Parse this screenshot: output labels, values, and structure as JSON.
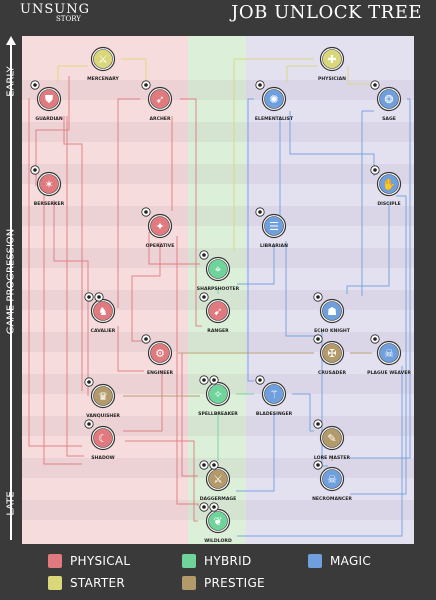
{
  "header": {
    "logo_text": "UNSUNG",
    "logo_sub": "STORY",
    "title": "JOB UNLOCK TREE"
  },
  "axis": {
    "early_label": "EARLY",
    "progression_label": "GAME PROGRESSION",
    "late_label": "LATE"
  },
  "colors": {
    "physical": "#e07a7e",
    "hybrid": "#6fd49a",
    "magic": "#6f9fdc",
    "starter": "#d9d77a",
    "prestige": "#b39a6a"
  },
  "legend": [
    {
      "label": "PHYSICAL",
      "color": "#e07a7e"
    },
    {
      "label": "HYBRID",
      "color": "#6fd49a"
    },
    {
      "label": "MAGIC",
      "color": "#6f9fdc"
    },
    {
      "label": "STARTER",
      "color": "#d9d77a"
    },
    {
      "label": "PRESTIGE",
      "color": "#b39a6a"
    }
  ],
  "jobs": [
    {
      "id": "mercenary",
      "label": "MERCENARY",
      "category": "starter",
      "icon": "crossed-swords-icon",
      "glyph": "⚔",
      "reqs": []
    },
    {
      "id": "physician",
      "label": "PHYSICIAN",
      "category": "starter",
      "icon": "staff-icon",
      "glyph": "✚",
      "reqs": []
    },
    {
      "id": "guardian",
      "label": "GUARDIAN",
      "category": "physical",
      "icon": "shield-icon",
      "glyph": "⛊",
      "reqs": [
        "axe-icon"
      ]
    },
    {
      "id": "archer",
      "label": "ARCHER",
      "category": "physical",
      "icon": "bow-icon",
      "glyph": "➶",
      "reqs": [
        "bow-small-icon"
      ]
    },
    {
      "id": "elementalist",
      "label": "ELEMENTALIST",
      "category": "magic",
      "icon": "spiral-icon",
      "glyph": "✺",
      "reqs": [
        "swirl-icon"
      ]
    },
    {
      "id": "sage",
      "label": "SAGE",
      "category": "magic",
      "icon": "winged-orb-icon",
      "glyph": "❂",
      "reqs": [
        "wings-icon"
      ]
    },
    {
      "id": "berserker",
      "label": "BERSERKER",
      "category": "physical",
      "icon": "claw-icon",
      "glyph": "✶",
      "reqs": [
        "claw-small-icon"
      ]
    },
    {
      "id": "disciple",
      "label": "DISCIPLE",
      "category": "magic",
      "icon": "hand-icon",
      "glyph": "✋",
      "reqs": [
        "hand-small-icon"
      ]
    },
    {
      "id": "operative",
      "label": "OPERATIVE",
      "category": "physical",
      "icon": "dagger-icon",
      "glyph": "✦",
      "reqs": [
        "dagger-small-icon"
      ]
    },
    {
      "id": "librarian",
      "label": "LIBRARIAN",
      "category": "magic",
      "icon": "book-icon",
      "glyph": "☰",
      "reqs": [
        "scroll-icon"
      ]
    },
    {
      "id": "sharpshooter",
      "label": "SHARPSHOOTER",
      "category": "hybrid",
      "icon": "crosshair-icon",
      "glyph": "⌖",
      "reqs": [
        "target-icon"
      ]
    },
    {
      "id": "cavalier",
      "label": "CAVALIER",
      "category": "physical",
      "icon": "horse-icon",
      "glyph": "♞",
      "reqs": [
        "horse-small-icon",
        "lance-icon"
      ]
    },
    {
      "id": "ranger",
      "label": "RANGER",
      "category": "physical",
      "icon": "arrows-icon",
      "glyph": "➹",
      "reqs": [
        "arrows-small-icon"
      ]
    },
    {
      "id": "echoknight",
      "label": "ECHO KNIGHT",
      "category": "magic",
      "icon": "helmet-icon",
      "glyph": "☗",
      "reqs": [
        "echo-icon"
      ]
    },
    {
      "id": "engineer",
      "label": "ENGINEER",
      "category": "physical",
      "icon": "gear-icon",
      "glyph": "⚙",
      "reqs": [
        "wrench-icon"
      ]
    },
    {
      "id": "crusader",
      "label": "CRUSADER",
      "category": "prestige",
      "icon": "cross-icon",
      "glyph": "✠",
      "reqs": [
        "cross-small-icon"
      ]
    },
    {
      "id": "plagueweaver",
      "label": "PLAGUE WEAVER",
      "category": "magic",
      "icon": "mask-icon",
      "glyph": "☠",
      "reqs": [
        "mask-small-icon"
      ]
    },
    {
      "id": "spellbreaker",
      "label": "SPELLBREAKER",
      "category": "hybrid",
      "icon": "rune-icon",
      "glyph": "✧",
      "reqs": [
        "rune-small-icon",
        "flame-icon"
      ]
    },
    {
      "id": "bladesinger",
      "label": "BLADESINGER",
      "category": "magic",
      "icon": "blade-icon",
      "glyph": "⚚",
      "reqs": [
        "book-small-icon"
      ]
    },
    {
      "id": "vanquisher",
      "label": "VANQUISHER",
      "category": "prestige",
      "icon": "crown-icon",
      "glyph": "♛",
      "reqs": [
        "sword-small-icon"
      ]
    },
    {
      "id": "shadow",
      "label": "SHADOW",
      "category": "physical",
      "icon": "hood-icon",
      "glyph": "☾",
      "reqs": [
        "shadow-small-icon"
      ]
    },
    {
      "id": "loremaster",
      "label": "LORE MASTER",
      "category": "prestige",
      "icon": "tome-icon",
      "glyph": "✎",
      "reqs": [
        "quill-icon"
      ]
    },
    {
      "id": "daggermage",
      "label": "DAGGERMAGE",
      "category": "prestige",
      "icon": "crossed-daggers-icon",
      "glyph": "⚔",
      "reqs": [
        "daggers-small-icon",
        "spark-icon"
      ]
    },
    {
      "id": "necromancer",
      "label": "NECROMANCER",
      "category": "magic",
      "icon": "skull-icon",
      "glyph": "☠",
      "reqs": [
        "bone-icon"
      ]
    },
    {
      "id": "wildlord",
      "label": "WILDLORD",
      "category": "hybrid",
      "icon": "leaf-icon",
      "glyph": "❦",
      "reqs": [
        "leaf-small-icon",
        "paw-icon"
      ]
    }
  ]
}
